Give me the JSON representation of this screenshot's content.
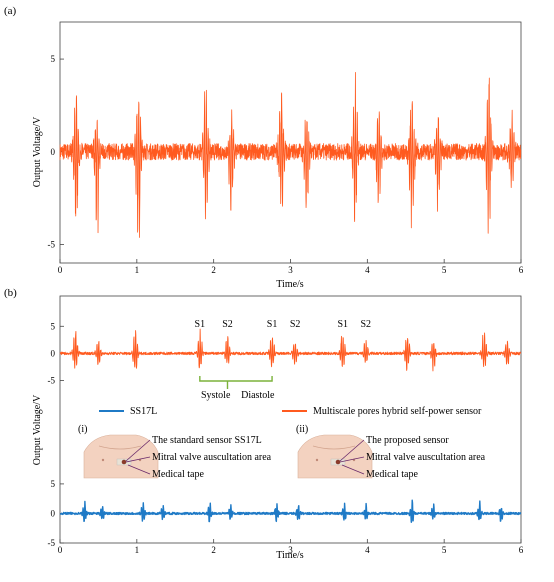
{
  "chart_data": [
    {
      "panel_label": "(a)",
      "type": "line",
      "xlabel": "Time/s",
      "ylabel": "Output Voltage/V",
      "xlim": [
        0,
        6
      ],
      "ylim": [
        -6,
        7
      ],
      "xticks": [
        "0",
        "1",
        "2",
        "3",
        "4",
        "5",
        "6"
      ],
      "yticks": [
        "5",
        "0",
        "-5"
      ],
      "color": "#ff5a1f",
      "series": [
        {
          "beats": [
            {
              "t": 0.21,
              "pos": 4.5,
              "neg": -4.6
            },
            {
              "t": 0.48,
              "pos": 2.2,
              "neg": -5.3
            },
            {
              "t": 1.02,
              "pos": 4.4,
              "neg": -5.7
            },
            {
              "t": 1.9,
              "pos": 4.0,
              "neg": -4.1
            },
            {
              "t": 2.23,
              "pos": 2.5,
              "neg": -3.7
            },
            {
              "t": 2.88,
              "pos": 3.9,
              "neg": -4.3
            },
            {
              "t": 3.21,
              "pos": 2.3,
              "neg": -3.7
            },
            {
              "t": 3.84,
              "pos": 4.3,
              "neg": -4.3
            },
            {
              "t": 4.15,
              "pos": 2.7,
              "neg": -3.7
            },
            {
              "t": 4.58,
              "pos": 4.1,
              "neg": -5.2
            },
            {
              "t": 4.92,
              "pos": 2.4,
              "neg": -3.8
            },
            {
              "t": 5.58,
              "pos": 4.6,
              "neg": -4.9
            },
            {
              "t": 5.88,
              "pos": 2.3,
              "neg": -2.5
            }
          ]
        }
      ]
    },
    {
      "panel_label": "(b)",
      "type": "line",
      "xlabel": "Time/s",
      "ylabel": "Output Voltage/V",
      "xlim": [
        0,
        6
      ],
      "xticks": [
        "0",
        "1",
        "2",
        "3",
        "4",
        "5",
        "6"
      ],
      "upper": {
        "ylim": [
          -6,
          8
        ],
        "yticks": [
          "5",
          "0",
          "-5"
        ],
        "color": "#ff5a1f",
        "beats": [
          {
            "t": 0.2,
            "pos": 5.6,
            "neg": -3.5
          },
          {
            "t": 0.5,
            "pos": 3.0,
            "neg": -2.8
          },
          {
            "t": 0.98,
            "pos": 5.2,
            "neg": -4.2
          },
          {
            "t": 1.82,
            "pos": 4.8,
            "neg": -3.6
          },
          {
            "t": 2.18,
            "pos": 3.7,
            "neg": -2.8
          },
          {
            "t": 2.76,
            "pos": 4.6,
            "neg": -3.5
          },
          {
            "t": 3.06,
            "pos": 2.9,
            "neg": -2.7
          },
          {
            "t": 3.68,
            "pos": 4.5,
            "neg": -3.6
          },
          {
            "t": 3.98,
            "pos": 3.0,
            "neg": -2.9
          },
          {
            "t": 4.52,
            "pos": 4.9,
            "neg": -3.9
          },
          {
            "t": 4.86,
            "pos": 3.0,
            "neg": -3.4
          },
          {
            "t": 5.52,
            "pos": 5.1,
            "neg": -3.8
          },
          {
            "t": 5.82,
            "pos": 2.9,
            "neg": -3.0
          }
        ]
      },
      "lower": {
        "ylim": [
          -5,
          6
        ],
        "yticks": [
          "5",
          "0",
          "-5"
        ],
        "color": "#1f7ac6",
        "beats": [
          {
            "t": 0.32,
            "pos": 2.4,
            "neg": -2.0
          },
          {
            "t": 0.55,
            "pos": 1.8,
            "neg": -1.6
          },
          {
            "t": 1.08,
            "pos": 2.3,
            "neg": -2.0
          },
          {
            "t": 1.34,
            "pos": 1.7,
            "neg": -1.5
          },
          {
            "t": 1.95,
            "pos": 2.3,
            "neg": -2.1
          },
          {
            "t": 2.22,
            "pos": 1.8,
            "neg": -1.6
          },
          {
            "t": 2.82,
            "pos": 2.4,
            "neg": -2.0
          },
          {
            "t": 3.1,
            "pos": 1.8,
            "neg": -1.7
          },
          {
            "t": 3.7,
            "pos": 2.3,
            "neg": -2.0
          },
          {
            "t": 3.98,
            "pos": 1.8,
            "neg": -1.6
          },
          {
            "t": 4.58,
            "pos": 2.4,
            "neg": -2.1
          },
          {
            "t": 4.86,
            "pos": 1.9,
            "neg": -1.6
          },
          {
            "t": 5.46,
            "pos": 2.3,
            "neg": -2.0
          },
          {
            "t": 5.74,
            "pos": 1.8,
            "neg": -1.7
          }
        ]
      },
      "peak_labels": [
        {
          "text": "S1",
          "t": 1.82
        },
        {
          "text": "S2",
          "t": 2.18
        },
        {
          "text": "S1",
          "t": 2.76
        },
        {
          "text": "S2",
          "t": 3.06
        },
        {
          "text": "S1",
          "t": 3.68
        },
        {
          "text": "S2",
          "t": 3.98
        }
      ],
      "phase_labels": {
        "systole": "Systole",
        "diastole": "Diastole"
      },
      "phase_bracket_t": [
        1.82,
        2.18,
        2.76
      ],
      "legend": [
        {
          "label": "SS17L",
          "color": "#1f7ac6"
        },
        {
          "label": "Multiscale pores hybrid self-power sensor",
          "color": "#ff5a1f"
        }
      ],
      "insets": [
        {
          "label": "(i)",
          "lines": [
            "The standard sensor SS17L",
            "Mitral valve auscultation area",
            "Medical tape"
          ]
        },
        {
          "label": "(ii)",
          "lines": [
            "The proposed sensor",
            "Mitral valve auscultation area",
            "Medical tape"
          ]
        }
      ]
    }
  ]
}
